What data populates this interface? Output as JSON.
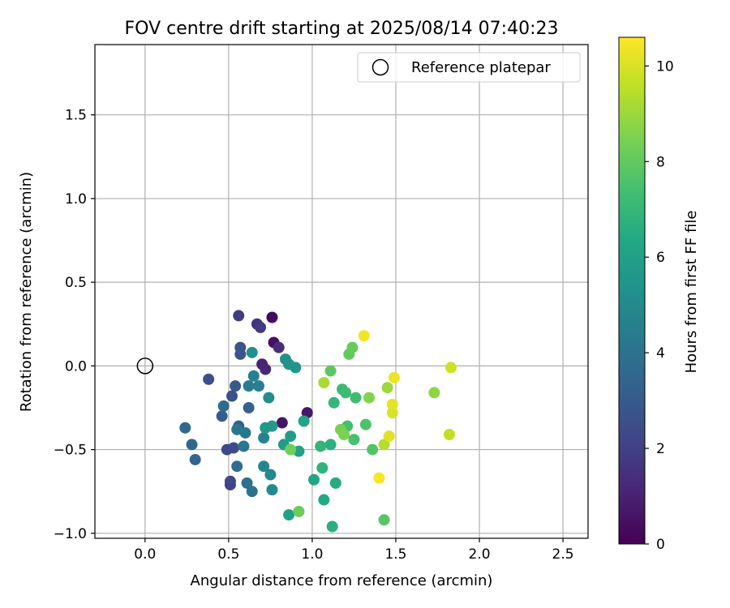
{
  "chart_data": {
    "type": "scatter",
    "title": "FOV centre drift starting at 2025/08/14 07:40:23",
    "xlabel": "Angular distance from reference (arcmin)",
    "ylabel": "Rotation from reference (arcmin)",
    "xlim": [
      -0.3,
      2.65
    ],
    "ylim": [
      -1.03,
      1.92
    ],
    "xticks": [
      "0.0",
      "0.5",
      "1.0",
      "1.5",
      "2.0",
      "2.5"
    ],
    "xtick_values": [
      0,
      0.5,
      1.0,
      1.5,
      2.0,
      2.5
    ],
    "yticks": [
      "−1.0",
      "−0.5",
      "0.0",
      "0.5",
      "1.0",
      "1.5"
    ],
    "ytick_values": [
      -1.0,
      -0.5,
      0.0,
      0.5,
      1.0,
      1.5
    ],
    "grid": true,
    "legend": {
      "placement": "top-right",
      "label": "Reference platepar",
      "marker": "hollow-circle"
    },
    "reference_point": {
      "x": 0.0,
      "y": 0.0
    },
    "colorbar": {
      "label": "Hours from first FF file",
      "colormap": "viridis",
      "range": [
        0,
        10.6
      ],
      "ticks": [
        "0",
        "2",
        "4",
        "6",
        "8",
        "10"
      ],
      "tick_values": [
        0,
        2,
        4,
        6,
        8,
        10
      ]
    },
    "points": [
      {
        "x": 0.76,
        "y": 0.29,
        "c": 0.3
      },
      {
        "x": 0.77,
        "y": 0.14,
        "c": 0.5
      },
      {
        "x": 0.82,
        "y": -0.34,
        "c": 0.6
      },
      {
        "x": 0.97,
        "y": -0.28,
        "c": 0.7
      },
      {
        "x": 0.7,
        "y": 0.01,
        "c": 1.0
      },
      {
        "x": 0.72,
        "y": -0.02,
        "c": 1.2
      },
      {
        "x": 0.8,
        "y": 0.11,
        "c": 1.4
      },
      {
        "x": 0.67,
        "y": 0.25,
        "c": 1.6
      },
      {
        "x": 0.69,
        "y": 0.23,
        "c": 1.8
      },
      {
        "x": 0.56,
        "y": 0.3,
        "c": 1.9
      },
      {
        "x": 0.51,
        "y": -0.71,
        "c": 2.1
      },
      {
        "x": 0.51,
        "y": -0.69,
        "c": 2.2
      },
      {
        "x": 0.49,
        "y": -0.5,
        "c": 2.3
      },
      {
        "x": 0.53,
        "y": -0.49,
        "c": 2.4
      },
      {
        "x": 0.38,
        "y": -0.08,
        "c": 2.5
      },
      {
        "x": 0.52,
        "y": -0.18,
        "c": 2.6
      },
      {
        "x": 0.57,
        "y": 0.07,
        "c": 2.7
      },
      {
        "x": 0.57,
        "y": 0.11,
        "c": 2.8
      },
      {
        "x": 0.54,
        "y": -0.12,
        "c": 3.0
      },
      {
        "x": 0.46,
        "y": -0.3,
        "c": 3.1
      },
      {
        "x": 0.56,
        "y": -0.36,
        "c": 3.2
      },
      {
        "x": 0.62,
        "y": -0.25,
        "c": 3.3
      },
      {
        "x": 0.3,
        "y": -0.56,
        "c": 3.4
      },
      {
        "x": 0.28,
        "y": -0.47,
        "c": 3.5
      },
      {
        "x": 0.24,
        "y": -0.37,
        "c": 3.6
      },
      {
        "x": 0.47,
        "y": -0.24,
        "c": 3.7
      },
      {
        "x": 0.55,
        "y": -0.6,
        "c": 3.8
      },
      {
        "x": 0.61,
        "y": -0.7,
        "c": 3.9
      },
      {
        "x": 0.64,
        "y": -0.75,
        "c": 4.0
      },
      {
        "x": 0.59,
        "y": -0.48,
        "c": 4.1
      },
      {
        "x": 0.55,
        "y": -0.38,
        "c": 4.2
      },
      {
        "x": 0.6,
        "y": -0.4,
        "c": 4.3
      },
      {
        "x": 0.62,
        "y": -0.12,
        "c": 4.4
      },
      {
        "x": 0.68,
        "y": -0.12,
        "c": 4.5
      },
      {
        "x": 0.65,
        "y": -0.06,
        "c": 4.6
      },
      {
        "x": 0.71,
        "y": -0.43,
        "c": 4.7
      },
      {
        "x": 0.71,
        "y": -0.6,
        "c": 4.8
      },
      {
        "x": 0.75,
        "y": -0.65,
        "c": 4.9
      },
      {
        "x": 0.76,
        "y": -0.74,
        "c": 5.0
      },
      {
        "x": 0.74,
        "y": -0.19,
        "c": 5.1
      },
      {
        "x": 0.64,
        "y": 0.08,
        "c": 5.2
      },
      {
        "x": 0.84,
        "y": 0.04,
        "c": 5.3
      },
      {
        "x": 0.86,
        "y": 0.01,
        "c": 5.4
      },
      {
        "x": 0.9,
        "y": -0.01,
        "c": 5.5
      },
      {
        "x": 0.72,
        "y": -0.37,
        "c": 5.6
      },
      {
        "x": 0.76,
        "y": -0.36,
        "c": 5.7
      },
      {
        "x": 0.83,
        "y": -0.47,
        "c": 5.8
      },
      {
        "x": 0.87,
        "y": -0.42,
        "c": 5.9
      },
      {
        "x": 0.86,
        "y": -0.89,
        "c": 6.0
      },
      {
        "x": 0.92,
        "y": -0.51,
        "c": 6.1
      },
      {
        "x": 0.95,
        "y": -0.33,
        "c": 6.2
      },
      {
        "x": 1.01,
        "y": -0.68,
        "c": 6.3
      },
      {
        "x": 1.07,
        "y": -0.8,
        "c": 6.4
      },
      {
        "x": 1.14,
        "y": -0.7,
        "c": 6.5
      },
      {
        "x": 1.12,
        "y": -0.96,
        "c": 6.6
      },
      {
        "x": 1.11,
        "y": -0.47,
        "c": 6.7
      },
      {
        "x": 1.06,
        "y": -0.61,
        "c": 6.8
      },
      {
        "x": 1.05,
        "y": -0.48,
        "c": 6.9
      },
      {
        "x": 1.13,
        "y": -0.22,
        "c": 7.0
      },
      {
        "x": 1.18,
        "y": -0.14,
        "c": 7.1
      },
      {
        "x": 1.2,
        "y": -0.16,
        "c": 7.2
      },
      {
        "x": 1.26,
        "y": -0.19,
        "c": 7.3
      },
      {
        "x": 1.21,
        "y": -0.36,
        "c": 7.4
      },
      {
        "x": 1.25,
        "y": -0.44,
        "c": 7.5
      },
      {
        "x": 1.32,
        "y": -0.35,
        "c": 7.6
      },
      {
        "x": 1.36,
        "y": -0.5,
        "c": 7.7
      },
      {
        "x": 1.43,
        "y": -0.92,
        "c": 7.8
      },
      {
        "x": 1.11,
        "y": -0.03,
        "c": 7.9
      },
      {
        "x": 1.22,
        "y": 0.07,
        "c": 8.0
      },
      {
        "x": 1.24,
        "y": 0.11,
        "c": 8.1
      },
      {
        "x": 0.92,
        "y": -0.87,
        "c": 8.2
      },
      {
        "x": 0.87,
        "y": -0.5,
        "c": 8.3
      },
      {
        "x": 1.17,
        "y": -0.38,
        "c": 8.4
      },
      {
        "x": 1.19,
        "y": -0.41,
        "c": 8.5
      },
      {
        "x": 1.34,
        "y": -0.19,
        "c": 8.6
      },
      {
        "x": 1.73,
        "y": -0.16,
        "c": 8.8
      },
      {
        "x": 1.45,
        "y": -0.13,
        "c": 9.0
      },
      {
        "x": 1.07,
        "y": -0.1,
        "c": 9.2
      },
      {
        "x": 1.43,
        "y": -0.47,
        "c": 9.4
      },
      {
        "x": 1.82,
        "y": -0.41,
        "c": 9.6
      },
      {
        "x": 1.83,
        "y": -0.01,
        "c": 9.8
      },
      {
        "x": 1.48,
        "y": -0.28,
        "c": 10.0
      },
      {
        "x": 1.46,
        "y": -0.42,
        "c": 10.1
      },
      {
        "x": 1.48,
        "y": -0.23,
        "c": 10.2
      },
      {
        "x": 1.49,
        "y": -0.07,
        "c": 10.3
      },
      {
        "x": 1.31,
        "y": 0.18,
        "c": 10.4
      },
      {
        "x": 1.4,
        "y": -0.67,
        "c": 10.5
      }
    ]
  }
}
